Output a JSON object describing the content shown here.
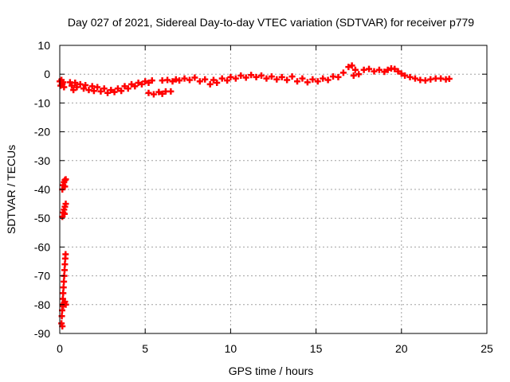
{
  "chart_data": {
    "type": "scatter",
    "title": "Day 027 of 2021, Sidereal Day-to-day VTEC variation (SDTVAR) for receiver p779",
    "xlabel": "GPS time / hours",
    "ylabel": "SDTVAR / TECUs",
    "xlim": [
      0,
      25
    ],
    "ylim": [
      -90,
      10
    ],
    "xticks": [
      0,
      5,
      10,
      15,
      20,
      25
    ],
    "yticks": [
      10,
      0,
      -10,
      -20,
      -30,
      -40,
      -50,
      -60,
      -70,
      -80,
      -90
    ],
    "grid": true,
    "marker": "plus",
    "series": [
      {
        "name": "SDTVAR",
        "color": "#ff0000",
        "points": [
          [
            0.0,
            -2.5
          ],
          [
            0.05,
            -4.0
          ],
          [
            0.1,
            -2.0
          ],
          [
            0.15,
            -3.5
          ],
          [
            0.2,
            -2.8
          ],
          [
            0.25,
            -4.5
          ],
          [
            0.15,
            -40.0
          ],
          [
            0.2,
            -38.5
          ],
          [
            0.25,
            -37.5
          ],
          [
            0.3,
            -36.8
          ],
          [
            0.35,
            -36.5
          ],
          [
            0.3,
            -39.0
          ],
          [
            0.15,
            -49.5
          ],
          [
            0.2,
            -48.0
          ],
          [
            0.25,
            -47.0
          ],
          [
            0.3,
            -46.0
          ],
          [
            0.35,
            -45.0
          ],
          [
            0.28,
            -48.5
          ],
          [
            0.1,
            -86.5
          ],
          [
            0.12,
            -84.0
          ],
          [
            0.14,
            -82.0
          ],
          [
            0.16,
            -80.0
          ],
          [
            0.18,
            -78.0
          ],
          [
            0.2,
            -76.0
          ],
          [
            0.22,
            -74.0
          ],
          [
            0.24,
            -72.0
          ],
          [
            0.26,
            -70.0
          ],
          [
            0.28,
            -68.0
          ],
          [
            0.3,
            -66.0
          ],
          [
            0.32,
            -64.0
          ],
          [
            0.34,
            -62.5
          ],
          [
            0.2,
            -80.5
          ],
          [
            0.25,
            -79.5
          ],
          [
            0.3,
            -79.0
          ],
          [
            0.35,
            -80.0
          ],
          [
            0.15,
            -87.5
          ],
          [
            0.6,
            -2.8
          ],
          [
            0.7,
            -4.0
          ],
          [
            0.8,
            -5.5
          ],
          [
            0.9,
            -3.0
          ],
          [
            1.0,
            -4.5
          ],
          [
            1.2,
            -3.5
          ],
          [
            1.4,
            -5.0
          ],
          [
            1.5,
            -3.8
          ],
          [
            1.7,
            -5.5
          ],
          [
            1.9,
            -4.2
          ],
          [
            2.0,
            -5.8
          ],
          [
            2.2,
            -4.5
          ],
          [
            2.4,
            -6.0
          ],
          [
            2.6,
            -5.0
          ],
          [
            2.8,
            -6.5
          ],
          [
            3.0,
            -5.5
          ],
          [
            3.2,
            -6.2
          ],
          [
            3.4,
            -5.0
          ],
          [
            3.6,
            -5.8
          ],
          [
            3.8,
            -4.2
          ],
          [
            4.0,
            -5.0
          ],
          [
            4.2,
            -3.5
          ],
          [
            4.4,
            -4.2
          ],
          [
            4.6,
            -3.0
          ],
          [
            4.8,
            -3.5
          ],
          [
            5.0,
            -2.5
          ],
          [
            5.2,
            -3.0
          ],
          [
            5.4,
            -2.2
          ],
          [
            5.2,
            -6.5
          ],
          [
            5.5,
            -7.0
          ],
          [
            5.8,
            -6.2
          ],
          [
            6.0,
            -6.8
          ],
          [
            6.2,
            -6.0
          ],
          [
            6.5,
            -6.0
          ],
          [
            6.0,
            -2.2
          ],
          [
            6.3,
            -2.0
          ],
          [
            6.6,
            -2.5
          ],
          [
            6.8,
            -1.8
          ],
          [
            7.0,
            -2.2
          ],
          [
            7.3,
            -1.5
          ],
          [
            7.6,
            -2.0
          ],
          [
            7.9,
            -1.2
          ],
          [
            8.2,
            -2.5
          ],
          [
            8.5,
            -1.8
          ],
          [
            8.8,
            -3.5
          ],
          [
            9.0,
            -2.0
          ],
          [
            9.2,
            -3.0
          ],
          [
            9.5,
            -1.5
          ],
          [
            9.8,
            -2.2
          ],
          [
            10.0,
            -1.0
          ],
          [
            10.3,
            -1.5
          ],
          [
            10.6,
            -0.5
          ],
          [
            10.9,
            -1.2
          ],
          [
            11.2,
            -0.3
          ],
          [
            11.5,
            -1.0
          ],
          [
            11.8,
            -0.5
          ],
          [
            12.1,
            -1.5
          ],
          [
            12.4,
            -0.8
          ],
          [
            12.7,
            -1.8
          ],
          [
            13.0,
            -1.0
          ],
          [
            13.3,
            -2.0
          ],
          [
            13.6,
            -0.8
          ],
          [
            13.9,
            -2.5
          ],
          [
            14.2,
            -1.5
          ],
          [
            14.5,
            -2.8
          ],
          [
            14.8,
            -1.8
          ],
          [
            15.1,
            -2.5
          ],
          [
            15.4,
            -1.5
          ],
          [
            15.7,
            -2.0
          ],
          [
            16.0,
            -0.8
          ],
          [
            16.3,
            -1.0
          ],
          [
            16.6,
            0.5
          ],
          [
            16.9,
            2.5
          ],
          [
            17.1,
            3.0
          ],
          [
            17.3,
            1.5
          ],
          [
            17.5,
            0.0
          ],
          [
            17.2,
            -0.5
          ],
          [
            17.8,
            1.5
          ],
          [
            18.1,
            1.8
          ],
          [
            18.4,
            1.0
          ],
          [
            18.7,
            1.5
          ],
          [
            19.0,
            0.8
          ],
          [
            19.2,
            1.5
          ],
          [
            19.4,
            2.0
          ],
          [
            19.6,
            1.8
          ],
          [
            19.8,
            1.0
          ],
          [
            20.0,
            0.2
          ],
          [
            20.2,
            -0.5
          ],
          [
            20.5,
            -1.0
          ],
          [
            20.8,
            -1.5
          ],
          [
            21.1,
            -2.0
          ],
          [
            21.4,
            -2.2
          ],
          [
            21.7,
            -1.8
          ],
          [
            22.0,
            -1.5
          ],
          [
            22.3,
            -1.5
          ],
          [
            22.6,
            -1.8
          ],
          [
            22.8,
            -1.6
          ]
        ]
      }
    ]
  }
}
